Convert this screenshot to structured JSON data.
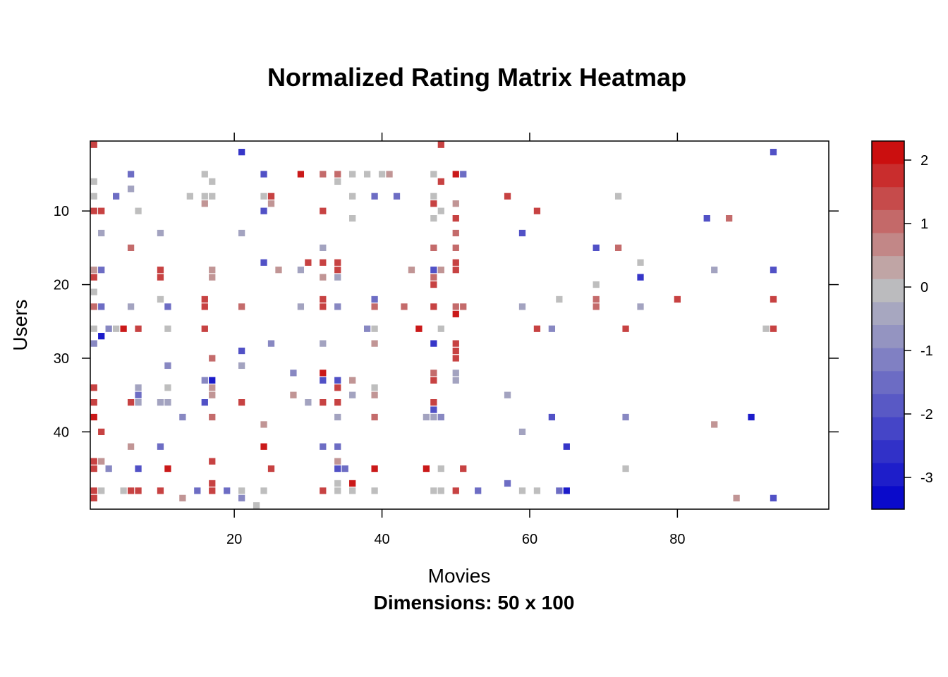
{
  "chart_data": {
    "type": "heatmap",
    "title": "Normalized Rating Matrix Heatmap",
    "subtitle": "Dimensions: 50 x 100",
    "xlabel": "Movies",
    "ylabel": "Users",
    "xlim": [
      0.5,
      100.5
    ],
    "ylim": [
      50.5,
      0.5
    ],
    "x_ticks": [
      20,
      40,
      60,
      80
    ],
    "y_ticks": [
      10,
      20,
      30,
      40
    ],
    "colorbar": {
      "ticks": [
        2,
        1,
        0,
        -1,
        -2,
        -3
      ],
      "range": [
        -3.5,
        2.3
      ],
      "low_color": "#0000CC",
      "mid_color": "#BEBEBE",
      "high_color": "#CC0000"
    },
    "cells": [
      [
        1,
        1,
        1.5
      ],
      [
        48,
        1,
        1.5
      ],
      [
        21,
        2,
        -2.5
      ],
      [
        93,
        2,
        -2
      ],
      [
        6,
        5,
        -1.5
      ],
      [
        16,
        5,
        0
      ],
      [
        24,
        5,
        -2
      ],
      [
        29,
        5,
        2
      ],
      [
        32,
        5,
        1
      ],
      [
        34,
        5,
        1
      ],
      [
        36,
        5,
        0
      ],
      [
        38,
        5,
        0
      ],
      [
        40,
        5,
        0
      ],
      [
        41,
        5,
        0.5
      ],
      [
        47,
        5,
        0
      ],
      [
        50,
        5,
        2
      ],
      [
        51,
        5,
        -1.5
      ],
      [
        1,
        6,
        0
      ],
      [
        17,
        6,
        0
      ],
      [
        34,
        6,
        0
      ],
      [
        48,
        6,
        1.5
      ],
      [
        6,
        7,
        -0.5
      ],
      [
        1,
        8,
        0
      ],
      [
        4,
        8,
        -1.5
      ],
      [
        14,
        8,
        0
      ],
      [
        16,
        8,
        0
      ],
      [
        17,
        8,
        0
      ],
      [
        24,
        8,
        0
      ],
      [
        25,
        8,
        1.5
      ],
      [
        36,
        8,
        0
      ],
      [
        39,
        8,
        -1.5
      ],
      [
        42,
        8,
        -1.5
      ],
      [
        47,
        8,
        0
      ],
      [
        57,
        8,
        1.5
      ],
      [
        72,
        8,
        0
      ],
      [
        16,
        9,
        0.5
      ],
      [
        25,
        9,
        0.5
      ],
      [
        47,
        9,
        1.5
      ],
      [
        50,
        9,
        0.5
      ],
      [
        1,
        10,
        1.5
      ],
      [
        2,
        10,
        1.5
      ],
      [
        7,
        10,
        0
      ],
      [
        24,
        10,
        -2
      ],
      [
        32,
        10,
        1.5
      ],
      [
        48,
        10,
        0
      ],
      [
        61,
        10,
        1.5
      ],
      [
        36,
        11,
        0
      ],
      [
        47,
        11,
        0
      ],
      [
        50,
        11,
        1.5
      ],
      [
        84,
        11,
        -2
      ],
      [
        87,
        11,
        1
      ],
      [
        2,
        13,
        -0.5
      ],
      [
        10,
        13,
        -0.5
      ],
      [
        21,
        13,
        -0.5
      ],
      [
        50,
        13,
        1
      ],
      [
        59,
        13,
        -2
      ],
      [
        6,
        15,
        1
      ],
      [
        32,
        15,
        -0.5
      ],
      [
        47,
        15,
        1
      ],
      [
        50,
        15,
        1
      ],
      [
        69,
        15,
        -2
      ],
      [
        72,
        15,
        1
      ],
      [
        24,
        17,
        -2
      ],
      [
        30,
        17,
        1.5
      ],
      [
        32,
        17,
        1.5
      ],
      [
        34,
        17,
        1.5
      ],
      [
        50,
        17,
        1.5
      ],
      [
        75,
        17,
        0
      ],
      [
        1,
        18,
        0.5
      ],
      [
        2,
        18,
        -1.5
      ],
      [
        10,
        18,
        1.5
      ],
      [
        17,
        18,
        0.5
      ],
      [
        26,
        18,
        0.5
      ],
      [
        29,
        18,
        -0.5
      ],
      [
        34,
        18,
        1.5
      ],
      [
        44,
        18,
        0.5
      ],
      [
        47,
        18,
        -2
      ],
      [
        48,
        18,
        0.5
      ],
      [
        50,
        18,
        1.5
      ],
      [
        85,
        18,
        -0.5
      ],
      [
        93,
        18,
        -2
      ],
      [
        1,
        19,
        1.5
      ],
      [
        10,
        19,
        1.5
      ],
      [
        17,
        19,
        0.5
      ],
      [
        32,
        19,
        0.5
      ],
      [
        34,
        19,
        -0.5
      ],
      [
        47,
        19,
        1
      ],
      [
        75,
        19,
        -2.5
      ],
      [
        47,
        20,
        1.5
      ],
      [
        69,
        20,
        0
      ],
      [
        1,
        21,
        0
      ],
      [
        10,
        22,
        0
      ],
      [
        16,
        22,
        1.5
      ],
      [
        32,
        22,
        1.5
      ],
      [
        39,
        22,
        -1.5
      ],
      [
        64,
        22,
        0
      ],
      [
        69,
        22,
        1
      ],
      [
        80,
        22,
        1.5
      ],
      [
        93,
        22,
        1.5
      ],
      [
        1,
        23,
        1
      ],
      [
        2,
        23,
        -1.5
      ],
      [
        6,
        23,
        -0.5
      ],
      [
        11,
        23,
        -1.5
      ],
      [
        16,
        23,
        1.5
      ],
      [
        21,
        23,
        1
      ],
      [
        29,
        23,
        -0.5
      ],
      [
        32,
        23,
        1.5
      ],
      [
        34,
        23,
        -1
      ],
      [
        39,
        23,
        1
      ],
      [
        43,
        23,
        1
      ],
      [
        47,
        23,
        1.5
      ],
      [
        50,
        23,
        1
      ],
      [
        51,
        23,
        1
      ],
      [
        59,
        23,
        -0.5
      ],
      [
        69,
        23,
        1
      ],
      [
        75,
        23,
        -0.5
      ],
      [
        50,
        24,
        2
      ],
      [
        1,
        26,
        0
      ],
      [
        3,
        26,
        -1
      ],
      [
        4,
        26,
        0
      ],
      [
        5,
        26,
        2
      ],
      [
        7,
        26,
        1.5
      ],
      [
        11,
        26,
        0
      ],
      [
        16,
        26,
        1.5
      ],
      [
        38,
        26,
        -1
      ],
      [
        39,
        26,
        0
      ],
      [
        45,
        26,
        2
      ],
      [
        48,
        26,
        0
      ],
      [
        61,
        26,
        1.5
      ],
      [
        63,
        26,
        -1
      ],
      [
        73,
        26,
        1.5
      ],
      [
        92,
        26,
        0
      ],
      [
        93,
        26,
        1.5
      ],
      [
        2,
        27,
        -3
      ],
      [
        1,
        28,
        -1
      ],
      [
        25,
        28,
        -1
      ],
      [
        32,
        28,
        -0.5
      ],
      [
        39,
        28,
        0.5
      ],
      [
        47,
        28,
        -2.5
      ],
      [
        50,
        28,
        1.5
      ],
      [
        21,
        29,
        -2
      ],
      [
        50,
        29,
        1.5
      ],
      [
        17,
        30,
        1
      ],
      [
        50,
        30,
        1.5
      ],
      [
        11,
        31,
        -1
      ],
      [
        21,
        31,
        -0.5
      ],
      [
        28,
        32,
        -1
      ],
      [
        32,
        32,
        2
      ],
      [
        47,
        32,
        1
      ],
      [
        50,
        32,
        -0.5
      ],
      [
        16,
        33,
        -1
      ],
      [
        17,
        33,
        -3
      ],
      [
        32,
        33,
        -2
      ],
      [
        34,
        33,
        -2
      ],
      [
        36,
        33,
        0.5
      ],
      [
        47,
        33,
        1.5
      ],
      [
        50,
        33,
        -0.5
      ],
      [
        1,
        34,
        1.5
      ],
      [
        7,
        34,
        -0.5
      ],
      [
        11,
        34,
        0
      ],
      [
        17,
        34,
        0.5
      ],
      [
        34,
        34,
        1.5
      ],
      [
        39,
        34,
        0
      ],
      [
        7,
        35,
        -1.5
      ],
      [
        17,
        35,
        0.5
      ],
      [
        28,
        35,
        0.5
      ],
      [
        36,
        35,
        -0.5
      ],
      [
        39,
        35,
        0.5
      ],
      [
        57,
        35,
        -0.5
      ],
      [
        1,
        36,
        1.5
      ],
      [
        6,
        36,
        1.5
      ],
      [
        7,
        36,
        -0.5
      ],
      [
        10,
        36,
        -0.5
      ],
      [
        11,
        36,
        -0.5
      ],
      [
        16,
        36,
        -2
      ],
      [
        21,
        36,
        1.5
      ],
      [
        30,
        36,
        -0.5
      ],
      [
        32,
        36,
        1.5
      ],
      [
        34,
        36,
        1.5
      ],
      [
        47,
        36,
        1.5
      ],
      [
        47,
        37,
        -2
      ],
      [
        1,
        38,
        2
      ],
      [
        13,
        38,
        -1
      ],
      [
        17,
        38,
        1
      ],
      [
        34,
        38,
        -0.5
      ],
      [
        39,
        38,
        1
      ],
      [
        46,
        38,
        -0.5
      ],
      [
        47,
        38,
        -0.5
      ],
      [
        48,
        38,
        -1
      ],
      [
        63,
        38,
        -2
      ],
      [
        73,
        38,
        -1
      ],
      [
        90,
        38,
        -3
      ],
      [
        24,
        39,
        0.5
      ],
      [
        85,
        39,
        0.5
      ],
      [
        2,
        40,
        1.5
      ],
      [
        59,
        40,
        -0.5
      ],
      [
        6,
        42,
        0.5
      ],
      [
        10,
        42,
        -1.5
      ],
      [
        24,
        42,
        2
      ],
      [
        32,
        42,
        -1.5
      ],
      [
        34,
        42,
        -1.5
      ],
      [
        65,
        42,
        -2.5
      ],
      [
        1,
        44,
        1.5
      ],
      [
        2,
        44,
        0.5
      ],
      [
        17,
        44,
        1.5
      ],
      [
        34,
        44,
        0.5
      ],
      [
        1,
        45,
        1.5
      ],
      [
        3,
        45,
        -1
      ],
      [
        7,
        45,
        -2
      ],
      [
        11,
        45,
        2
      ],
      [
        25,
        45,
        1.5
      ],
      [
        34,
        45,
        -2
      ],
      [
        35,
        45,
        -1.5
      ],
      [
        39,
        45,
        2
      ],
      [
        46,
        45,
        2
      ],
      [
        48,
        45,
        0
      ],
      [
        51,
        45,
        1.5
      ],
      [
        73,
        45,
        0
      ],
      [
        17,
        47,
        1.5
      ],
      [
        34,
        47,
        0
      ],
      [
        36,
        47,
        2
      ],
      [
        57,
        47,
        -1.5
      ],
      [
        1,
        48,
        1.5
      ],
      [
        2,
        48,
        0
      ],
      [
        5,
        48,
        0
      ],
      [
        6,
        48,
        1.5
      ],
      [
        7,
        48,
        1.5
      ],
      [
        10,
        48,
        1.5
      ],
      [
        15,
        48,
        -1.5
      ],
      [
        17,
        48,
        1.5
      ],
      [
        19,
        48,
        -1.5
      ],
      [
        21,
        48,
        0
      ],
      [
        24,
        48,
        0
      ],
      [
        32,
        48,
        1.5
      ],
      [
        34,
        48,
        0
      ],
      [
        36,
        48,
        0
      ],
      [
        39,
        48,
        0
      ],
      [
        47,
        48,
        0
      ],
      [
        48,
        48,
        0
      ],
      [
        50,
        48,
        1.5
      ],
      [
        53,
        48,
        -1.5
      ],
      [
        59,
        48,
        0
      ],
      [
        61,
        48,
        0
      ],
      [
        64,
        48,
        -1.5
      ],
      [
        65,
        48,
        -3
      ],
      [
        1,
        49,
        1.5
      ],
      [
        13,
        49,
        0.5
      ],
      [
        21,
        49,
        -1
      ],
      [
        88,
        49,
        0.5
      ],
      [
        93,
        49,
        -2
      ],
      [
        23,
        50,
        0
      ]
    ]
  }
}
